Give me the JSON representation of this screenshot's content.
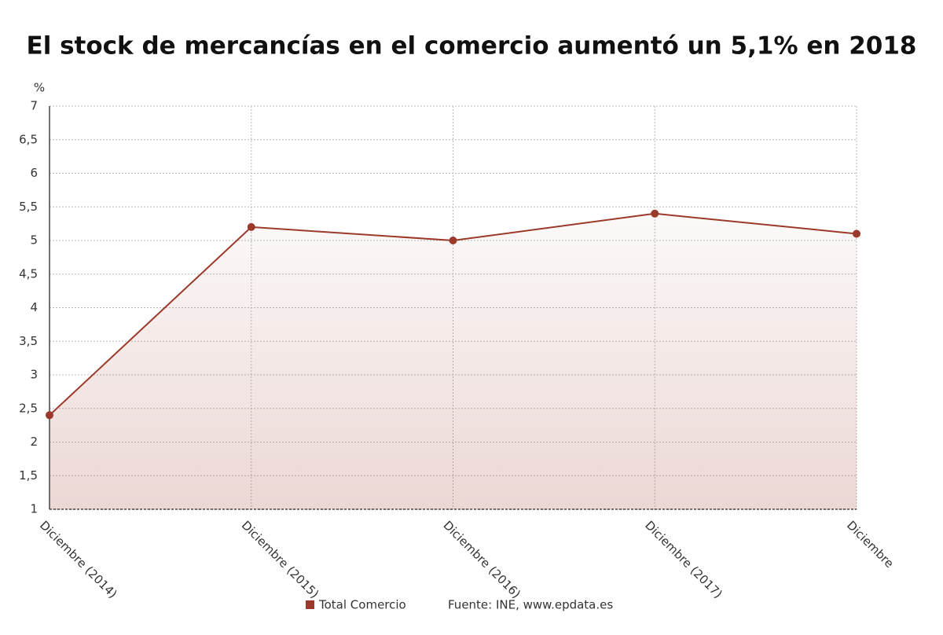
{
  "chart_data": {
    "type": "area",
    "title": "El stock de mercancías en el comercio aumentó un 5,1% en 2018",
    "y_label": "%",
    "categories": [
      "Diciembre (2014)",
      "Diciembre (2015)",
      "Diciembre (2016)",
      "Diciembre (2017)",
      "Diciembre"
    ],
    "series": [
      {
        "name": "Total Comercio",
        "color": "#9b3a2a",
        "values": [
          2.4,
          5.2,
          5.0,
          5.4,
          5.1
        ]
      }
    ],
    "ylim": [
      1,
      7
    ],
    "yticks": [
      1,
      {
        "value": 1.5,
        "label": "1,5"
      },
      2,
      {
        "value": 2.5,
        "label": "2,5"
      },
      3,
      {
        "value": 3.5,
        "label": "3,5"
      },
      4,
      {
        "value": 4.5,
        "label": "4,5"
      },
      5,
      {
        "value": 5.5,
        "label": "5,5"
      },
      6,
      {
        "value": 6.5,
        "label": "6,5"
      },
      7
    ],
    "grid": true,
    "source": "Fuente: INE, www.epdata.es"
  }
}
